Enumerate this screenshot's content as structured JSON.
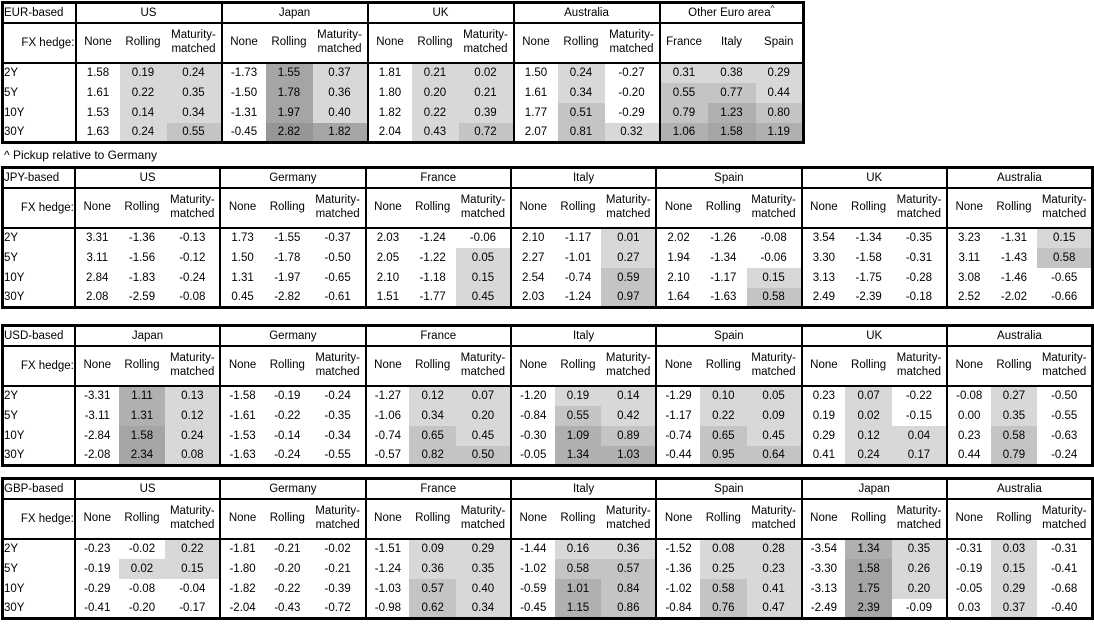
{
  "footnote": "^ Pickup relative to Germany",
  "shading": {
    "rule": "cells in non-None columns shaded gray when value > 0; darker = higher",
    "thresholds": [
      0.5,
      1.0,
      1.5,
      2.5
    ],
    "colors": [
      "#d8d8d8",
      "#c4c4c4",
      "#b0b0b0",
      "#a5a5a5",
      "#969696"
    ]
  },
  "tables": [
    {
      "id": "eur-based",
      "base_label": "EUR-based",
      "fx_hedge_label": "FX hedge:",
      "row_labels": [
        "2Y",
        "5Y",
        "10Y",
        "30Y"
      ],
      "groups": [
        {
          "name": "US",
          "cols": [
            "None",
            "Rolling",
            "Maturity-matched"
          ],
          "rows": [
            [
              "1.58",
              "0.19",
              "0.24"
            ],
            [
              "1.61",
              "0.22",
              "0.35"
            ],
            [
              "1.53",
              "0.14",
              "0.34"
            ],
            [
              "1.63",
              "0.24",
              "0.55"
            ]
          ]
        },
        {
          "name": "Japan",
          "cols": [
            "None",
            "Rolling",
            "Maturity-matched"
          ],
          "rows": [
            [
              "-1.73",
              "1.55",
              "0.37"
            ],
            [
              "-1.50",
              "1.78",
              "0.36"
            ],
            [
              "-1.31",
              "1.97",
              "0.40"
            ],
            [
              "-0.45",
              "2.82",
              "1.82"
            ]
          ]
        },
        {
          "name": "UK",
          "cols": [
            "None",
            "Rolling",
            "Maturity-matched"
          ],
          "rows": [
            [
              "1.81",
              "0.21",
              "0.02"
            ],
            [
              "1.80",
              "0.20",
              "0.21"
            ],
            [
              "1.82",
              "0.22",
              "0.39"
            ],
            [
              "2.04",
              "0.43",
              "0.72"
            ]
          ]
        },
        {
          "name": "Australia",
          "cols": [
            "None",
            "Rolling",
            "Maturity-matched"
          ],
          "rows": [
            [
              "1.50",
              "0.24",
              "-0.27"
            ],
            [
              "1.61",
              "0.34",
              "-0.20"
            ],
            [
              "1.77",
              "0.51",
              "-0.29"
            ],
            [
              "2.07",
              "0.81",
              "0.32"
            ]
          ]
        },
        {
          "name": "Other Euro area",
          "sup": "^",
          "cols": [
            "France",
            "Italy",
            "Spain"
          ],
          "rows": [
            [
              "0.31",
              "0.38",
              "0.29"
            ],
            [
              "0.55",
              "0.77",
              "0.44"
            ],
            [
              "0.79",
              "1.23",
              "0.80"
            ],
            [
              "1.06",
              "1.58",
              "1.19"
            ]
          ]
        }
      ]
    },
    {
      "id": "jpy-based",
      "base_label": "JPY-based",
      "fx_hedge_label": "FX hedge:",
      "row_labels": [
        "2Y",
        "5Y",
        "10Y",
        "30Y"
      ],
      "groups": [
        {
          "name": "US",
          "cols": [
            "None",
            "Rolling",
            "Maturity-matched"
          ],
          "rows": [
            [
              "3.31",
              "-1.36",
              "-0.13"
            ],
            [
              "3.11",
              "-1.56",
              "-0.12"
            ],
            [
              "2.84",
              "-1.83",
              "-0.24"
            ],
            [
              "2.08",
              "-2.59",
              "-0.08"
            ]
          ]
        },
        {
          "name": "Germany",
          "cols": [
            "None",
            "Rolling",
            "Maturity-matched"
          ],
          "rows": [
            [
              "1.73",
              "-1.55",
              "-0.37"
            ],
            [
              "1.50",
              "-1.78",
              "-0.50"
            ],
            [
              "1.31",
              "-1.97",
              "-0.65"
            ],
            [
              "0.45",
              "-2.82",
              "-0.61"
            ]
          ]
        },
        {
          "name": "France",
          "cols": [
            "None",
            "Rolling",
            "Maturity-matched"
          ],
          "rows": [
            [
              "2.03",
              "-1.24",
              "-0.06"
            ],
            [
              "2.05",
              "-1.22",
              "0.05"
            ],
            [
              "2.10",
              "-1.18",
              "0.15"
            ],
            [
              "1.51",
              "-1.77",
              "0.45"
            ]
          ]
        },
        {
          "name": "Italy",
          "cols": [
            "None",
            "Rolling",
            "Maturity-matched"
          ],
          "rows": [
            [
              "2.10",
              "-1.17",
              "0.01"
            ],
            [
              "2.27",
              "-1.01",
              "0.27"
            ],
            [
              "2.54",
              "-0.74",
              "0.59"
            ],
            [
              "2.03",
              "-1.24",
              "0.97"
            ]
          ]
        },
        {
          "name": "Spain",
          "cols": [
            "None",
            "Rolling",
            "Maturity-matched"
          ],
          "rows": [
            [
              "2.02",
              "-1.26",
              "-0.08"
            ],
            [
              "1.94",
              "-1.34",
              "-0.06"
            ],
            [
              "2.10",
              "-1.17",
              "0.15"
            ],
            [
              "1.64",
              "-1.63",
              "0.58"
            ]
          ]
        },
        {
          "name": "UK",
          "cols": [
            "None",
            "Rolling",
            "Maturity-matched"
          ],
          "rows": [
            [
              "3.54",
              "-1.34",
              "-0.35"
            ],
            [
              "3.30",
              "-1.58",
              "-0.31"
            ],
            [
              "3.13",
              "-1.75",
              "-0.28"
            ],
            [
              "2.49",
              "-2.39",
              "-0.18"
            ]
          ]
        },
        {
          "name": "Australia",
          "cols": [
            "None",
            "Rolling",
            "Maturity-matched"
          ],
          "rows": [
            [
              "3.23",
              "-1.31",
              "0.15"
            ],
            [
              "3.11",
              "-1.43",
              "0.58"
            ],
            [
              "3.08",
              "-1.46",
              "-0.65"
            ],
            [
              "2.52",
              "-2.02",
              "-0.66"
            ]
          ]
        }
      ]
    },
    {
      "id": "usd-based",
      "base_label": "USD-based",
      "fx_hedge_label": "FX hedge:",
      "row_labels": [
        "2Y",
        "5Y",
        "10Y",
        "30Y"
      ],
      "groups": [
        {
          "name": "Japan",
          "cols": [
            "None",
            "Rolling",
            "Maturity-matched"
          ],
          "rows": [
            [
              "-3.31",
              "1.11",
              "0.13"
            ],
            [
              "-3.11",
              "1.31",
              "0.12"
            ],
            [
              "-2.84",
              "1.58",
              "0.24"
            ],
            [
              "-2.08",
              "2.34",
              "0.08"
            ]
          ]
        },
        {
          "name": "Germany",
          "cols": [
            "None",
            "Rolling",
            "Maturity-matched"
          ],
          "rows": [
            [
              "-1.58",
              "-0.19",
              "-0.24"
            ],
            [
              "-1.61",
              "-0.22",
              "-0.35"
            ],
            [
              "-1.53",
              "-0.14",
              "-0.34"
            ],
            [
              "-1.63",
              "-0.24",
              "-0.55"
            ]
          ]
        },
        {
          "name": "France",
          "cols": [
            "None",
            "Rolling",
            "Maturity-matched"
          ],
          "rows": [
            [
              "-1.27",
              "0.12",
              "0.07"
            ],
            [
              "-1.06",
              "0.34",
              "0.20"
            ],
            [
              "-0.74",
              "0.65",
              "0.45"
            ],
            [
              "-0.57",
              "0.82",
              "0.50"
            ]
          ]
        },
        {
          "name": "Italy",
          "cols": [
            "None",
            "Rolling",
            "Maturity-matched"
          ],
          "rows": [
            [
              "-1.20",
              "0.19",
              "0.14"
            ],
            [
              "-0.84",
              "0.55",
              "0.42"
            ],
            [
              "-0.30",
              "1.09",
              "0.89"
            ],
            [
              "-0.05",
              "1.34",
              "1.03"
            ]
          ]
        },
        {
          "name": "Spain",
          "cols": [
            "None",
            "Rolling",
            "Maturity-matched"
          ],
          "rows": [
            [
              "-1.29",
              "0.10",
              "0.05"
            ],
            [
              "-1.17",
              "0.22",
              "0.09"
            ],
            [
              "-0.74",
              "0.65",
              "0.45"
            ],
            [
              "-0.44",
              "0.95",
              "0.64"
            ]
          ]
        },
        {
          "name": "UK",
          "cols": [
            "None",
            "Rolling",
            "Maturity-matched"
          ],
          "rows": [
            [
              "0.23",
              "0.07",
              "-0.22"
            ],
            [
              "0.19",
              "0.02",
              "-0.15"
            ],
            [
              "0.29",
              "0.12",
              "0.04"
            ],
            [
              "0.41",
              "0.24",
              "0.17"
            ]
          ]
        },
        {
          "name": "Australia",
          "cols": [
            "None",
            "Rolling",
            "Maturity-matched"
          ],
          "rows": [
            [
              "-0.08",
              "0.27",
              "-0.50"
            ],
            [
              "0.00",
              "0.35",
              "-0.55"
            ],
            [
              "0.23",
              "0.58",
              "-0.63"
            ],
            [
              "0.44",
              "0.79",
              "-0.24"
            ]
          ]
        }
      ]
    },
    {
      "id": "gbp-based",
      "base_label": "GBP-based",
      "fx_hedge_label": "FX hedge:",
      "row_labels": [
        "2Y",
        "5Y",
        "10Y",
        "30Y"
      ],
      "groups": [
        {
          "name": "US",
          "cols": [
            "None",
            "Rolling",
            "Maturity-matched"
          ],
          "rows": [
            [
              "-0.23",
              "-0.02",
              "0.22"
            ],
            [
              "-0.19",
              "0.02",
              "0.15"
            ],
            [
              "-0.29",
              "-0.08",
              "-0.04"
            ],
            [
              "-0.41",
              "-0.20",
              "-0.17"
            ]
          ]
        },
        {
          "name": "Germany",
          "cols": [
            "None",
            "Rolling",
            "Maturity-matched"
          ],
          "rows": [
            [
              "-1.81",
              "-0.21",
              "-0.02"
            ],
            [
              "-1.80",
              "-0.20",
              "-0.21"
            ],
            [
              "-1.82",
              "-0.22",
              "-0.39"
            ],
            [
              "-2.04",
              "-0.43",
              "-0.72"
            ]
          ]
        },
        {
          "name": "France",
          "cols": [
            "None",
            "Rolling",
            "Maturity-matched"
          ],
          "rows": [
            [
              "-1.51",
              "0.09",
              "0.29"
            ],
            [
              "-1.24",
              "0.36",
              "0.35"
            ],
            [
              "-1.03",
              "0.57",
              "0.40"
            ],
            [
              "-0.98",
              "0.62",
              "0.34"
            ]
          ]
        },
        {
          "name": "Italy",
          "cols": [
            "None",
            "Rolling",
            "Maturity-matched"
          ],
          "rows": [
            [
              "-1.44",
              "0.16",
              "0.36"
            ],
            [
              "-1.02",
              "0.58",
              "0.57"
            ],
            [
              "-0.59",
              "1.01",
              "0.84"
            ],
            [
              "-0.45",
              "1.15",
              "0.86"
            ]
          ]
        },
        {
          "name": "Spain",
          "cols": [
            "None",
            "Rolling",
            "Maturity-matched"
          ],
          "rows": [
            [
              "-1.52",
              "0.08",
              "0.28"
            ],
            [
              "-1.36",
              "0.25",
              "0.23"
            ],
            [
              "-1.02",
              "0.58",
              "0.41"
            ],
            [
              "-0.84",
              "0.76",
              "0.47"
            ]
          ]
        },
        {
          "name": "Japan",
          "cols": [
            "None",
            "Rolling",
            "Maturity-matched"
          ],
          "rows": [
            [
              "-3.54",
              "1.34",
              "0.35"
            ],
            [
              "-3.30",
              "1.58",
              "0.26"
            ],
            [
              "-3.13",
              "1.75",
              "0.20"
            ],
            [
              "-2.49",
              "2.39",
              "-0.09"
            ]
          ]
        },
        {
          "name": "Australia",
          "cols": [
            "None",
            "Rolling",
            "Maturity-matched"
          ],
          "rows": [
            [
              "-0.31",
              "0.03",
              "-0.31"
            ],
            [
              "-0.19",
              "0.15",
              "-0.41"
            ],
            [
              "-0.05",
              "0.29",
              "-0.68"
            ],
            [
              "0.03",
              "0.37",
              "-0.40"
            ]
          ]
        }
      ]
    }
  ]
}
